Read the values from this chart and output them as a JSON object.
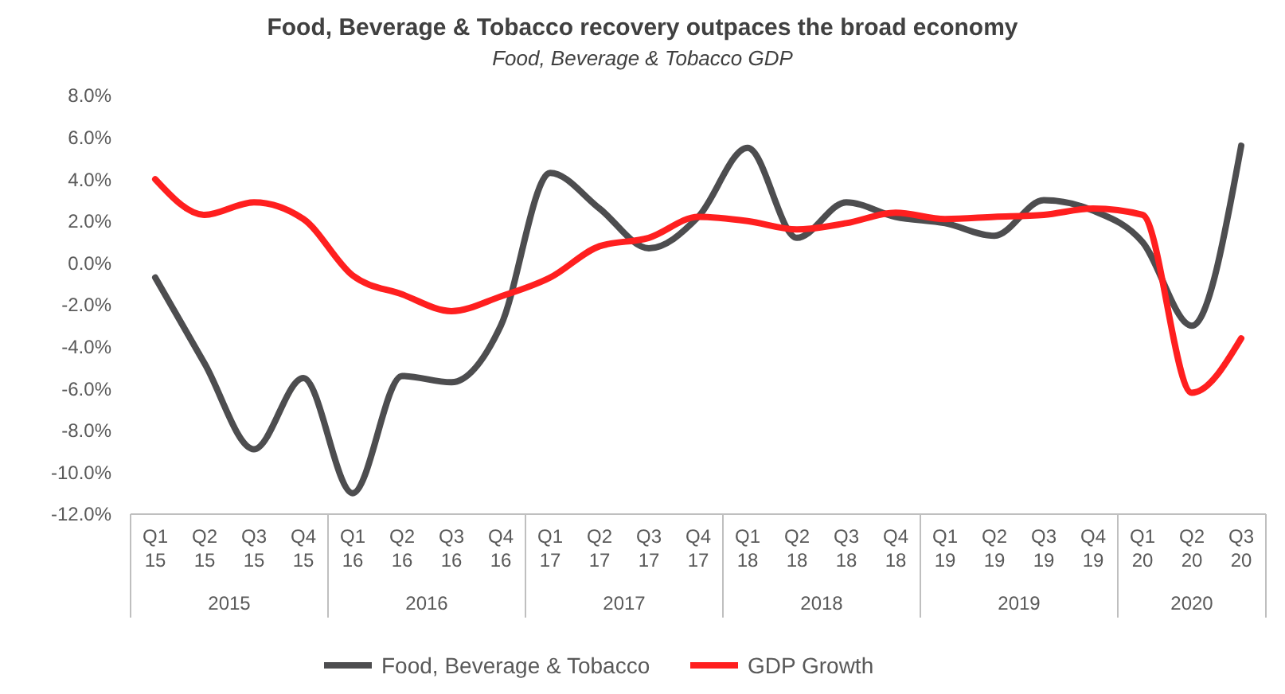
{
  "chart_data": {
    "type": "line",
    "title": "Food, Beverage & Tobacco recovery outpaces the broad economy",
    "subtitle": "Food, Beverage & Tobacco GDP",
    "categories": [
      "Q1 15",
      "Q2 15",
      "Q3 15",
      "Q4 15",
      "Q1 16",
      "Q2 16",
      "Q3 16",
      "Q4 16",
      "Q1 17",
      "Q2 17",
      "Q3 17",
      "Q4 17",
      "Q1 18",
      "Q2 18",
      "Q3 18",
      "Q4 18",
      "Q1 19",
      "Q2 19",
      "Q3 19",
      "Q4 19",
      "Q1 20",
      "Q2 20",
      "Q3 20"
    ],
    "annotations": [
      "2015",
      "2016",
      "2017",
      "2018",
      "2019",
      "2020"
    ],
    "series": [
      {
        "name": "Food, Beverage & Tobacco",
        "color": "#4d4d4f",
        "values": [
          -0.7,
          -4.8,
          -8.9,
          -5.5,
          -11.0,
          -5.4,
          -5.7,
          -3.0,
          4.3,
          2.6,
          0.7,
          2.2,
          5.5,
          1.2,
          2.9,
          2.2,
          1.9,
          1.3,
          3.0,
          2.5,
          1.0,
          -3.0,
          5.6
        ]
      },
      {
        "name": "GDP Growth",
        "color": "#ff1f1f",
        "values": [
          4.0,
          2.3,
          2.9,
          2.1,
          -0.6,
          -1.5,
          -2.3,
          -1.6,
          -0.7,
          0.8,
          1.2,
          2.2,
          2.0,
          1.6,
          1.9,
          2.4,
          2.1,
          2.2,
          2.3,
          2.6,
          2.3,
          -6.2,
          -3.6
        ]
      }
    ],
    "ylim": [
      -12,
      8
    ],
    "yticks": [
      {
        "value": -12,
        "label": "-12.0%"
      },
      {
        "value": -10,
        "label": "-10.0%"
      },
      {
        "value": -8,
        "label": "-8.0%"
      },
      {
        "value": -6,
        "label": "-6.0%"
      },
      {
        "value": -4,
        "label": "-4.0%"
      },
      {
        "value": -2,
        "label": "-2.0%"
      },
      {
        "value": 0,
        "label": "0.0%"
      },
      {
        "value": 2,
        "label": "2.0%"
      },
      {
        "value": 4,
        "label": "4.0%"
      },
      {
        "value": 6,
        "label": "6.0%"
      },
      {
        "value": 8,
        "label": "8.0%"
      }
    ],
    "legend": "bottom",
    "line_style": "solid"
  }
}
